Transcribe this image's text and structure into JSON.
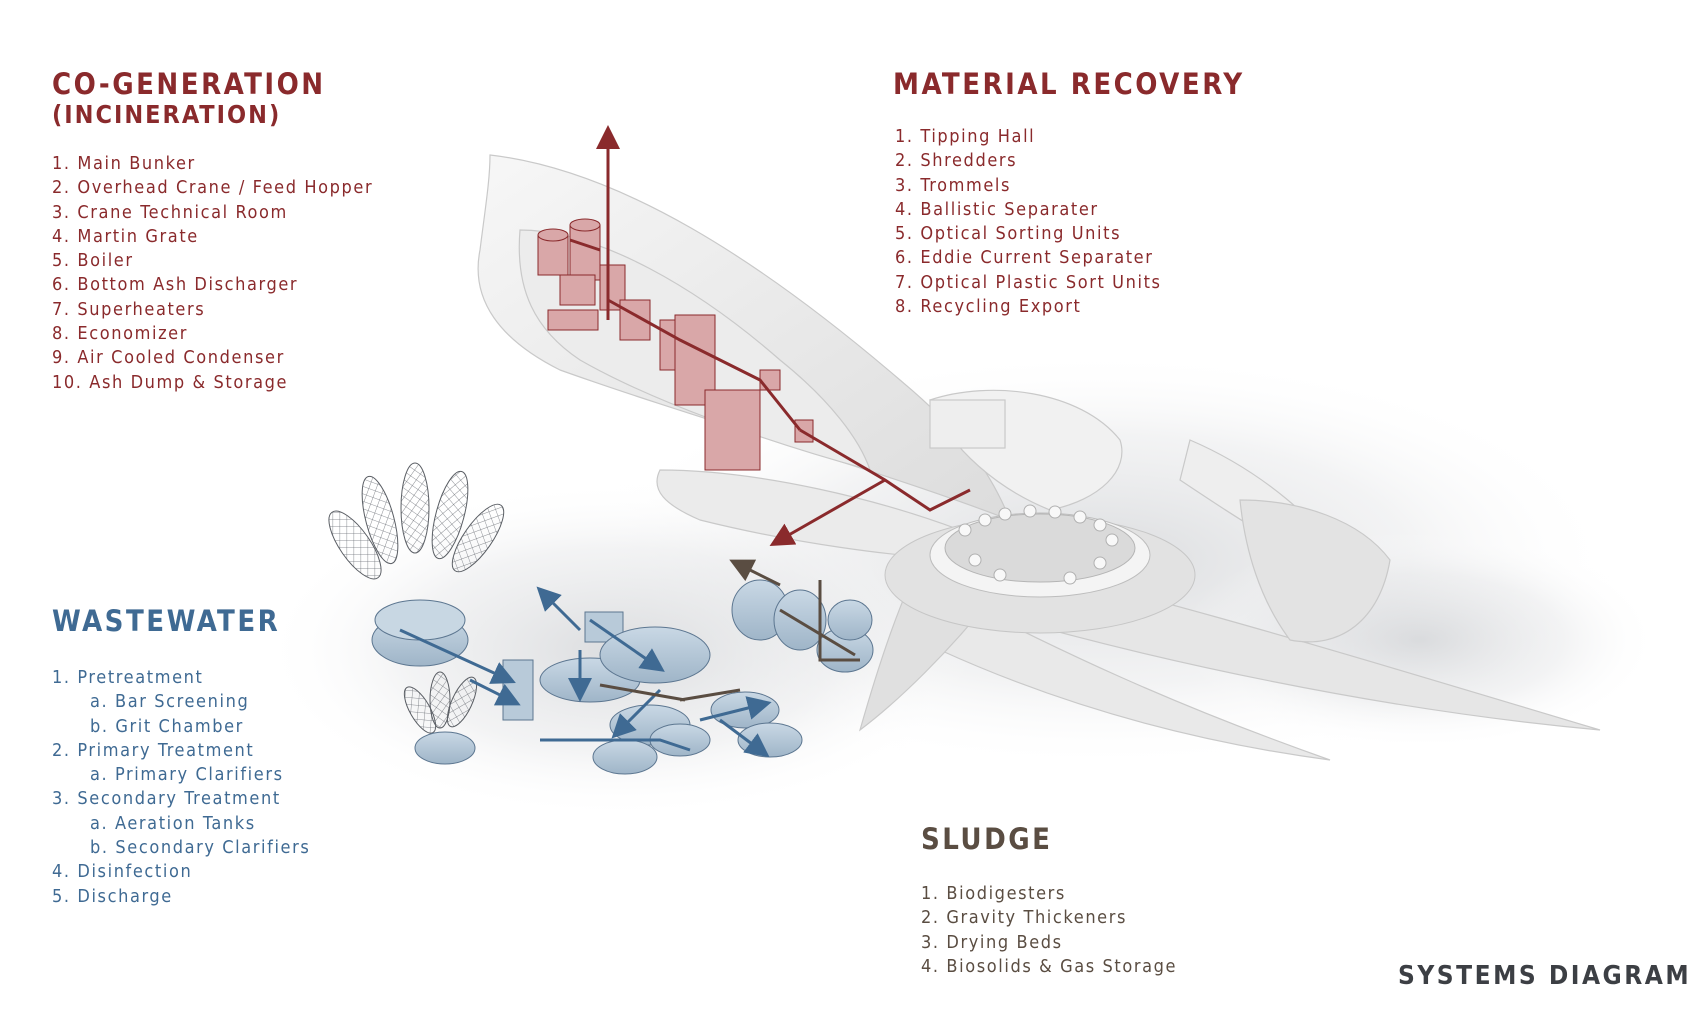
{
  "cogeneration": {
    "title": "CO-GENERATION",
    "subtitle": "(INCINERATION)",
    "items": [
      "1. Main Bunker",
      "2. Overhead Crane / Feed Hopper",
      "3. Crane Technical Room",
      "4. Martin Grate",
      "5. Boiler",
      "6. Bottom Ash Discharger",
      "7. Superheaters",
      "8. Economizer",
      "9. Air Cooled Condenser",
      "10. Ash Dump & Storage"
    ]
  },
  "material_recovery": {
    "title": "MATERIAL RECOVERY",
    "items": [
      "1. Tipping Hall",
      "2. Shredders",
      "3. Trommels",
      "4. Ballistic Separater",
      "5. Optical Sorting Units",
      "6. Eddie Current Separater",
      "7. Optical Plastic Sort Units",
      "8. Recycling Export"
    ]
  },
  "wastewater": {
    "title": "WASTEWATER",
    "items": [
      "1. Pretreatment",
      "a. Bar Screening",
      "b. Grit Chamber",
      "2. Primary Treatment",
      "a. Primary Clarifiers",
      "3. Secondary Treatment",
      "a. Aeration Tanks",
      "b. Secondary Clarifiers",
      "4. Disinfection",
      "5. Discharge"
    ]
  },
  "sludge": {
    "title": "SLUDGE",
    "items": [
      "1. Biodigesters",
      "2. Gravity Thickeners",
      "3. Drying Beds",
      "4. Biosolids & Gas Storage"
    ]
  },
  "caption": "SYSTEMS DIAGRAM",
  "colors": {
    "cogeneration": "#8a2a2c",
    "wastewater": "#3f6a93",
    "sludge": "#5a4d42",
    "building": "#e8e8e8"
  }
}
